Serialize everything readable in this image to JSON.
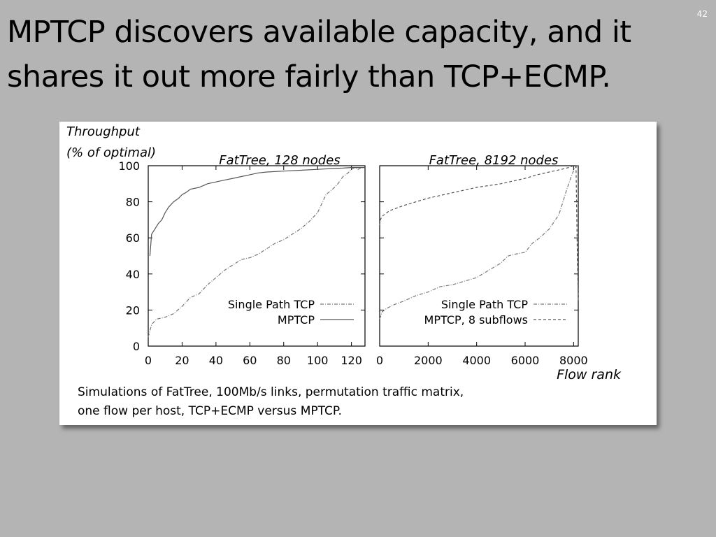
{
  "slide": {
    "number": "42",
    "title_lines": [
      "MPTCP discovers available capacity, and it",
      "shares it out more fairly than TCP+ECMP."
    ],
    "caption_lines": [
      "Simulations of FatTree, 100Mb/s links, permutation traffic matrix,",
      "one flow per host, TCP+ECMP versus MPTCP."
    ]
  },
  "colors": {
    "background": "#b4b4b4",
    "card": "#ffffff",
    "mptcp_line": "#555555",
    "single_path_line": "#777777"
  },
  "chart_data": {
    "ylabel_lines": [
      "Throughput",
      "(% of optimal)"
    ],
    "xlabel": "Flow rank",
    "charts": [
      {
        "type": "line",
        "title": "FatTree, 128 nodes",
        "xlim": [
          0,
          128
        ],
        "ylim": [
          0,
          100
        ],
        "xticks": [
          0,
          20,
          40,
          60,
          80,
          100,
          120
        ],
        "yticks": [
          0,
          20,
          40,
          60,
          80,
          100
        ],
        "legend": "bottom-right",
        "series": [
          {
            "name": "Single Path TCP",
            "style": "dash-dot",
            "x": [
              0,
              2,
              5,
              10,
              15,
              20,
              25,
              30,
              35,
              40,
              45,
              50,
              55,
              60,
              65,
              70,
              75,
              80,
              85,
              90,
              95,
              100,
              105,
              110,
              112,
              115,
              118,
              120,
              122,
              124,
              126,
              128
            ],
            "y": [
              5,
              12,
              15,
              16,
              18,
              22,
              27,
              29,
              34,
              38,
              42,
              45,
              48,
              49,
              51,
              54,
              57,
              59,
              62,
              65,
              69,
              74,
              84,
              88,
              90,
              94,
              96,
              98,
              99,
              98,
              99,
              99
            ]
          },
          {
            "name": "MPTCP",
            "style": "solid",
            "x": [
              1,
              2,
              4,
              6,
              8,
              10,
              12,
              15,
              18,
              20,
              22,
              25,
              30,
              35,
              40,
              45,
              50,
              55,
              60,
              65,
              70,
              80,
              90,
              100,
              110,
              115,
              120,
              125,
              128
            ],
            "y": [
              50,
              62,
              65,
              68,
              70,
              74,
              77,
              80,
              82,
              84,
              85,
              87,
              88,
              90,
              91,
              92,
              93,
              94,
              95,
              96,
              96.5,
              97,
              97.5,
              98,
              98.5,
              98.7,
              99,
              99,
              99
            ]
          }
        ]
      },
      {
        "type": "line",
        "title": "FatTree, 8192 nodes",
        "xlim": [
          0,
          8192
        ],
        "ylim": [
          0,
          100
        ],
        "xticks": [
          0,
          2000,
          4000,
          6000,
          8000
        ],
        "yticks": [
          0,
          20,
          40,
          60,
          80,
          100
        ],
        "legend": "bottom-right",
        "series": [
          {
            "name": "Single Path TCP",
            "style": "dash-dot",
            "x": [
              0,
              100,
              300,
              600,
              1000,
              1500,
              2000,
              2500,
              3000,
              3500,
              4000,
              4500,
              5000,
              5300,
              5600,
              6000,
              6300,
              6600,
              7000,
              7400,
              7700,
              7900,
              8050,
              8150,
              8192
            ],
            "y": [
              15,
              19,
              21,
              23,
              25,
              28,
              30,
              33,
              34,
              36,
              38,
              42,
              46,
              50,
              51,
              52,
              57,
              60,
              65,
              73,
              86,
              94,
              99,
              100,
              100
            ]
          },
          {
            "name": "MPTCP, 8 subflows",
            "style": "dashed",
            "x": [
              0,
              30,
              100,
              200,
              400,
              700,
              1000,
              1500,
              2000,
              3000,
              4000,
              5000,
              6000,
              6500,
              7000,
              7500,
              7800,
              8000,
              8100,
              8150,
              8192
            ],
            "y": [
              67,
              70,
              72,
              73,
              75,
              76.5,
              78,
              80,
              82,
              85,
              88,
              90,
              93,
              95,
              96.5,
              98,
              99,
              100,
              100,
              55,
              25
            ]
          }
        ]
      }
    ]
  }
}
